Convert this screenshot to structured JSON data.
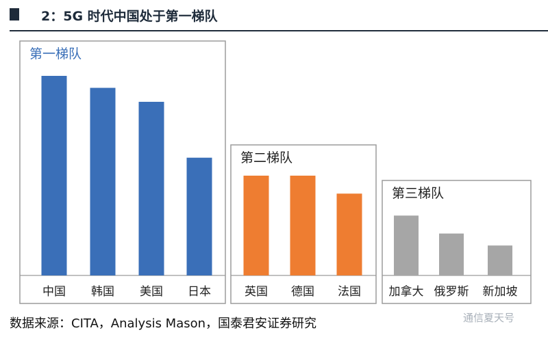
{
  "header": {
    "title_prefix": "2：",
    "title": "5G 时代中国处于第一梯队"
  },
  "chart_data": {
    "type": "bar",
    "title": "5G 时代中国处于第一梯队",
    "xlabel": "",
    "ylabel": "",
    "ylim": [
      0,
      100
    ],
    "grid": false,
    "groups": [
      {
        "name": "第一梯队",
        "color": "#3a6fb8",
        "categories": [
          "中国",
          "韩国",
          "美国",
          "日本"
        ],
        "values": [
          100,
          94,
          87,
          59
        ]
      },
      {
        "name": "第二梯队",
        "color": "#ee7d31",
        "categories": [
          "英国",
          "德国",
          "法国"
        ],
        "values": [
          50,
          50,
          41
        ]
      },
      {
        "name": "第三梯队",
        "color": "#a6a6a6",
        "categories": [
          "加拿大",
          "俄罗斯",
          "新加坡"
        ],
        "values": [
          30,
          21,
          15
        ]
      }
    ]
  },
  "footer": {
    "source": "数据来源：CITA，Analysis Mason，国泰君安证券研究",
    "watermark": "通信夏天号"
  }
}
